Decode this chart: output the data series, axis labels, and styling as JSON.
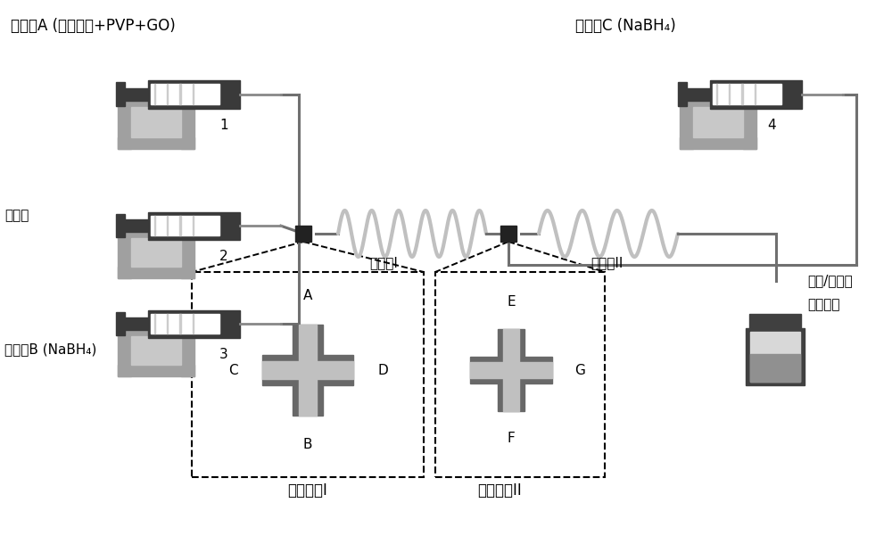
{
  "bg_color": "#ffffff",
  "dark_gray": "#3a3a3a",
  "mid_gray": "#808080",
  "light_gray": "#b0b0b0",
  "bracket_color": "#a0a0a0",
  "tube_color": "#888888",
  "coil_color": "#b8b8b8",
  "mixer_dark": "#686868",
  "mixer_light": "#c0c0c0",
  "label_A": "水溶液A (金属前体+PVP+GO)",
  "label_C": "水溶液C (NaBH₄)",
  "label_zhengxin": "正辛烷",
  "label_B": "水溶液B (NaBH₄)",
  "label_reactor1": "反应管I",
  "label_reactor2": "反应管II",
  "label_mixer1": "微混合器I",
  "label_mixer2": "微混合器II",
  "label_product_1": "合金/还原氧",
  "label_product_2": "化石墨烯",
  "nums": [
    "1",
    "2",
    "3",
    "4"
  ]
}
